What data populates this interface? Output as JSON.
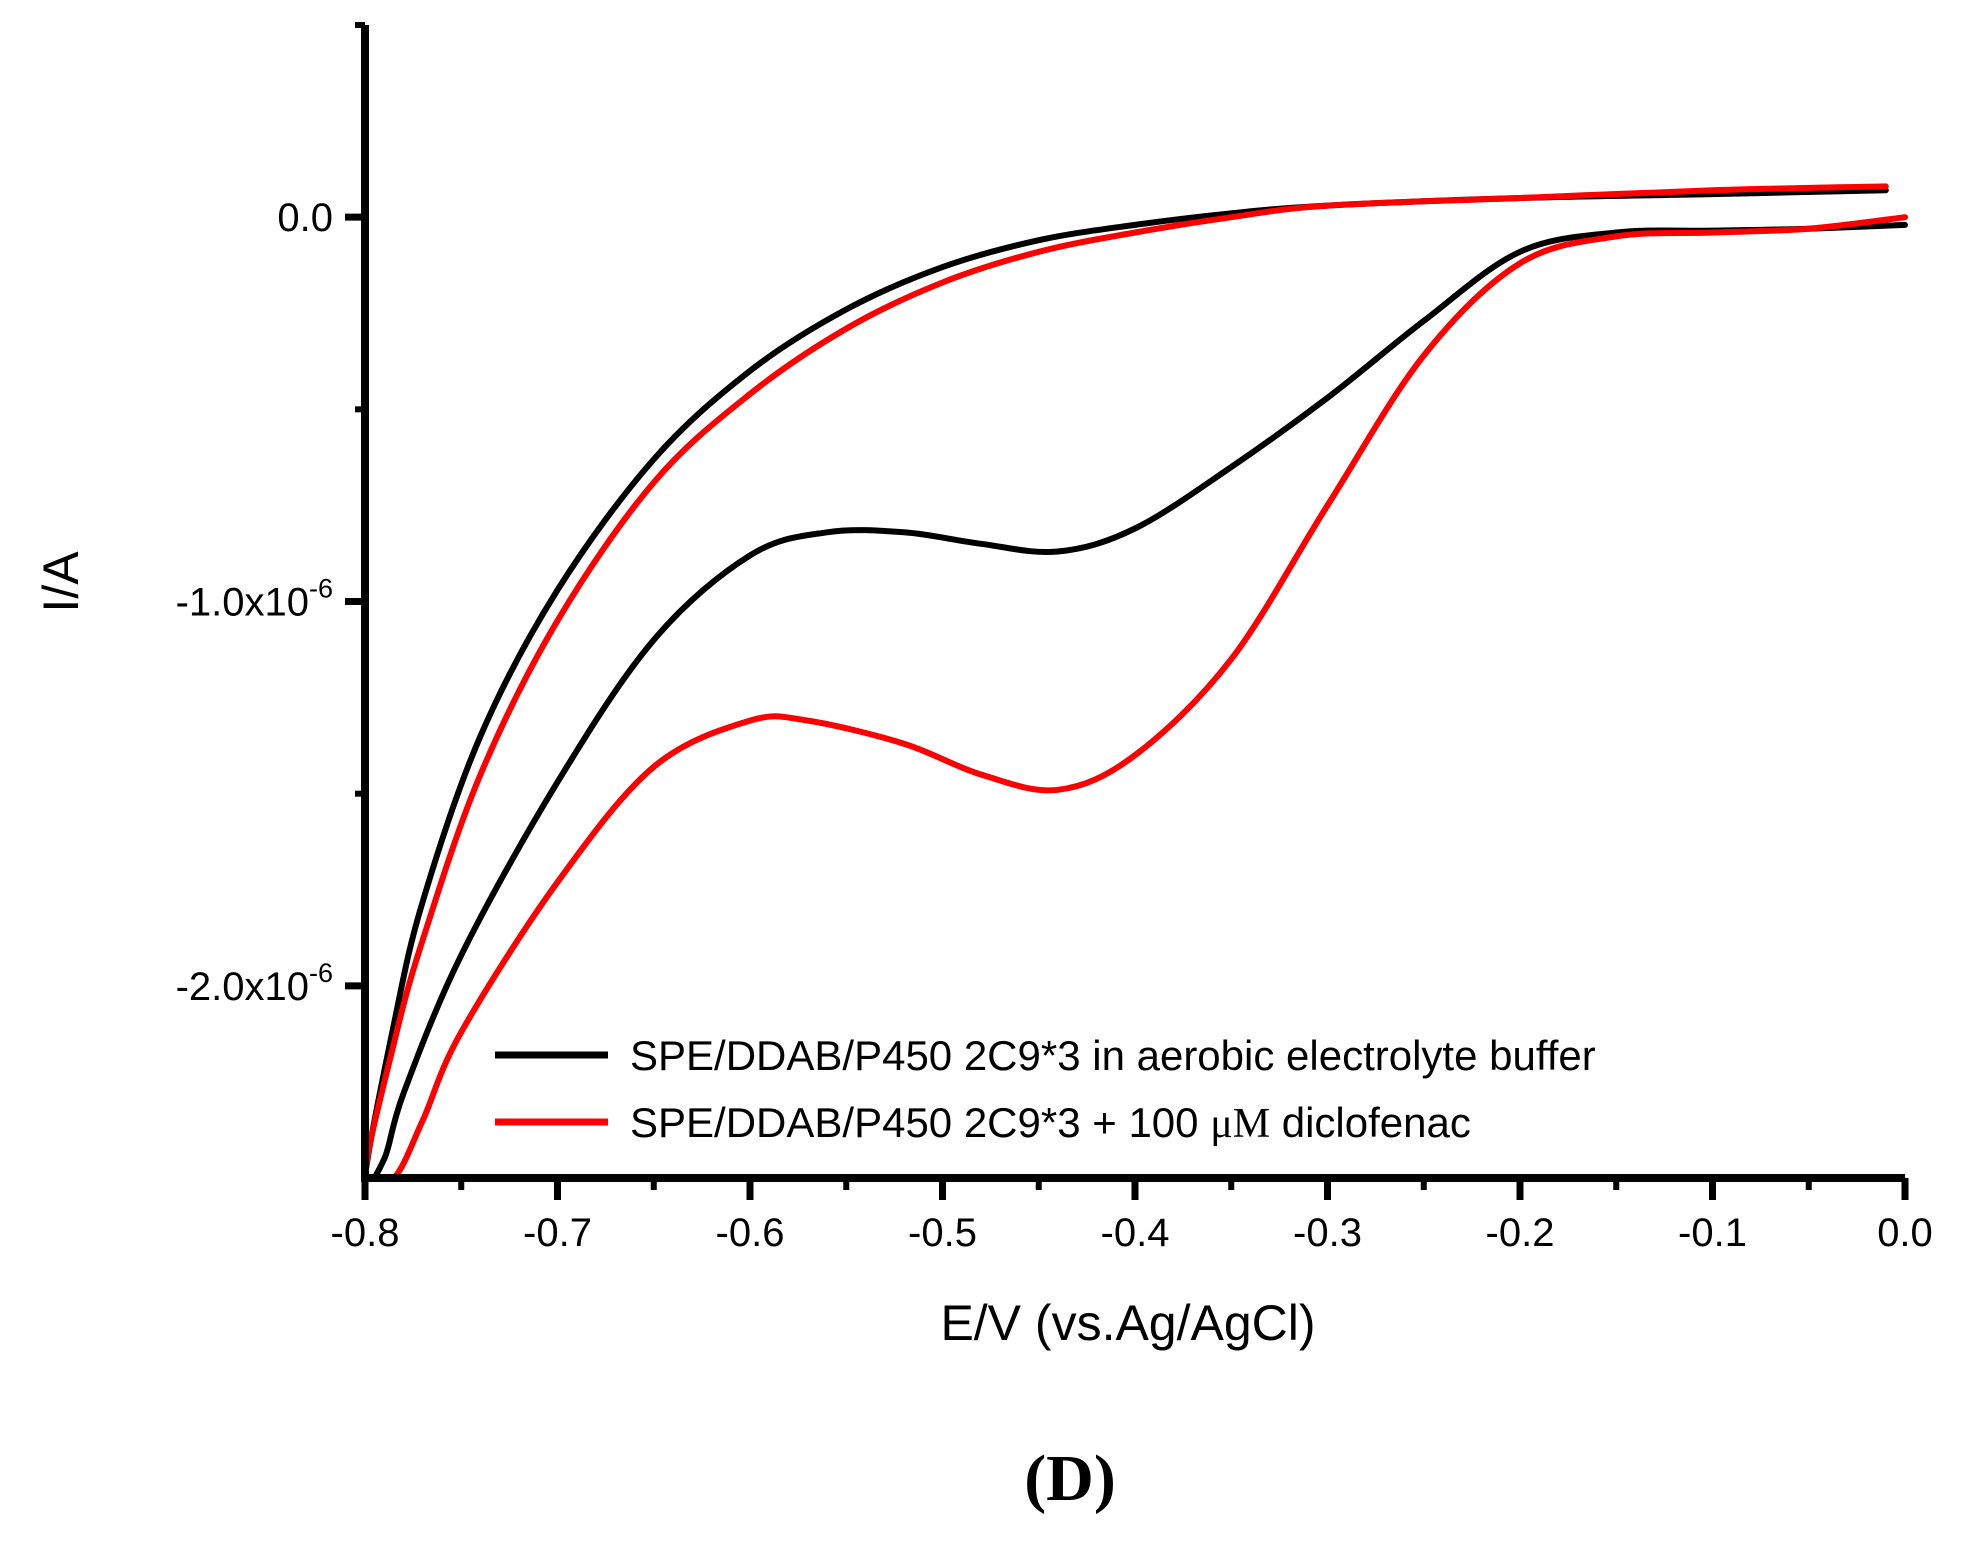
{
  "chart_data": {
    "type": "line",
    "panel_label": "(D)",
    "xlabel": "E/V (vs.Ag/AgCl)",
    "ylabel": "I/A",
    "xlim": [
      -0.8,
      0.0
    ],
    "ylim": [
      -2.5e-06,
      5e-07
    ],
    "x_ticks": [
      {
        "value": -0.8,
        "label": "-0.8"
      },
      {
        "value": -0.7,
        "label": "-0.7"
      },
      {
        "value": -0.6,
        "label": "-0.6"
      },
      {
        "value": -0.5,
        "label": "-0.5"
      },
      {
        "value": -0.4,
        "label": "-0.4"
      },
      {
        "value": -0.3,
        "label": "-0.3"
      },
      {
        "value": -0.2,
        "label": "-0.2"
      },
      {
        "value": -0.1,
        "label": "-0.1"
      },
      {
        "value": 0.0,
        "label": "0.0"
      }
    ],
    "y_ticks": [
      {
        "value": 0.0,
        "mant": "0.0",
        "exp": ""
      },
      {
        "value": -1e-06,
        "mant": "-1.0x10",
        "exp": "-6"
      },
      {
        "value": -2e-06,
        "mant": "-2.0x10",
        "exp": "-6"
      }
    ],
    "legend_position": "bottom-right",
    "series": [
      {
        "name": "SPE/DDAB/P450 2C9*3 in aerobic electrolyte buffer",
        "legend": {
          "pre": "SPE/DDAB/P450 2C9*3 in aerobic electrolyte buffer",
          "mu": "",
          "post": ""
        },
        "color": "#000000",
        "points": [
          [
            -0.01,
            7e-08
          ],
          [
            -0.1,
            6e-08
          ],
          [
            -0.2,
            5e-08
          ],
          [
            -0.3,
            3e-08
          ],
          [
            -0.35,
            1e-08
          ],
          [
            -0.4,
            -2e-08
          ],
          [
            -0.45,
            -6e-08
          ],
          [
            -0.5,
            -1.3e-07
          ],
          [
            -0.55,
            -2.4e-07
          ],
          [
            -0.6,
            -4e-07
          ],
          [
            -0.65,
            -6.3e-07
          ],
          [
            -0.7,
            -9.7e-07
          ],
          [
            -0.74,
            -1.35e-06
          ],
          [
            -0.77,
            -1.78e-06
          ],
          [
            -0.785,
            -2.1e-06
          ],
          [
            -0.8,
            -2.5e-06
          ],
          [
            -0.79,
            -2.45e-06
          ],
          [
            -0.78,
            -2.28e-06
          ],
          [
            -0.75,
            -1.92e-06
          ],
          [
            -0.7,
            -1.47e-06
          ],
          [
            -0.65,
            -1.1e-06
          ],
          [
            -0.6,
            -8.8e-07
          ],
          [
            -0.56,
            -8.2e-07
          ],
          [
            -0.52,
            -8.2e-07
          ],
          [
            -0.48,
            -8.5e-07
          ],
          [
            -0.44,
            -8.7e-07
          ],
          [
            -0.4,
            -8.1e-07
          ],
          [
            -0.35,
            -6.5e-07
          ],
          [
            -0.3,
            -4.7e-07
          ],
          [
            -0.25,
            -2.7e-07
          ],
          [
            -0.2,
            -9e-08
          ],
          [
            -0.15,
            -4e-08
          ],
          [
            -0.1,
            -3.5e-08
          ],
          [
            -0.05,
            -3e-08
          ],
          [
            0.0,
            -2e-08
          ]
        ]
      },
      {
        "name": "SPE/DDAB/P450 2C9*3 + 100 μM diclofenac",
        "legend": {
          "pre": "SPE/DDAB/P450 2C9*3 + 100 ",
          "mu": "μM",
          "post": " diclofenac"
        },
        "color": "#ff0000",
        "points": [
          [
            -0.01,
            8e-08
          ],
          [
            -0.1,
            7e-08
          ],
          [
            -0.2,
            5e-08
          ],
          [
            -0.3,
            3e-08
          ],
          [
            -0.35,
            0.0
          ],
          [
            -0.4,
            -4e-08
          ],
          [
            -0.45,
            -9e-08
          ],
          [
            -0.5,
            -1.7e-07
          ],
          [
            -0.55,
            -2.9e-07
          ],
          [
            -0.6,
            -4.6e-07
          ],
          [
            -0.65,
            -6.9e-07
          ],
          [
            -0.7,
            -1.05e-06
          ],
          [
            -0.74,
            -1.45e-06
          ],
          [
            -0.77,
            -1.88e-06
          ],
          [
            -0.785,
            -2.15e-06
          ],
          [
            -0.8,
            -2.5e-06
          ],
          [
            -0.785,
            -2.5e-06
          ],
          [
            -0.77,
            -2.35e-06
          ],
          [
            -0.75,
            -2.12e-06
          ],
          [
            -0.7,
            -1.73e-06
          ],
          [
            -0.65,
            -1.43e-06
          ],
          [
            -0.6,
            -1.31e-06
          ],
          [
            -0.57,
            -1.31e-06
          ],
          [
            -0.52,
            -1.37e-06
          ],
          [
            -0.48,
            -1.45e-06
          ],
          [
            -0.44,
            -1.49e-06
          ],
          [
            -0.4,
            -1.4e-06
          ],
          [
            -0.35,
            -1.15e-06
          ],
          [
            -0.3,
            -7.5e-07
          ],
          [
            -0.25,
            -3.6e-07
          ],
          [
            -0.2,
            -1.2e-07
          ],
          [
            -0.15,
            -5e-08
          ],
          [
            -0.1,
            -4e-08
          ],
          [
            -0.05,
            -3e-08
          ],
          [
            0.0,
            0.0
          ]
        ]
      }
    ]
  }
}
